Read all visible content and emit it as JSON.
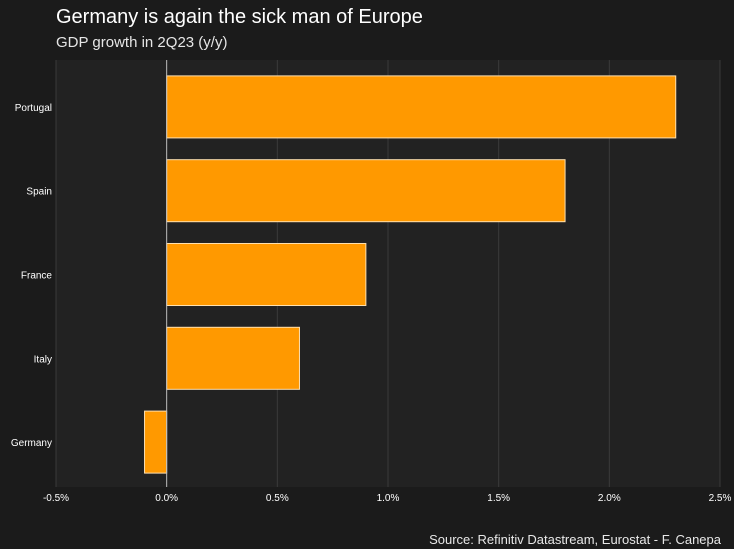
{
  "title": "Germany is again the sick man of Europe",
  "subtitle": "GDP growth in 2Q23 (y/y)",
  "source": "Source: Refinitiv Datastream, Eurostat - F. Canepa",
  "colors": {
    "background": "#1b1b1b",
    "plot_background": "#222222",
    "bar_fill": "#ff9900",
    "bar_stroke": "#ffe0b0",
    "gridline": "#3a3a3a",
    "zero_line": "#bdbdbd",
    "text": "#ffffff"
  },
  "chart_data": {
    "type": "bar",
    "orientation": "horizontal",
    "title": "Germany is again the sick man of Europe",
    "subtitle": "GDP growth in 2Q23 (y/y)",
    "categories": [
      "Portugal",
      "Spain",
      "France",
      "Italy",
      "Germany"
    ],
    "values": [
      2.3,
      1.8,
      0.9,
      0.6,
      -0.1
    ],
    "unit": "%",
    "xlim": [
      -0.5,
      2.5
    ],
    "xticks": [
      -0.5,
      0.0,
      0.5,
      1.0,
      1.5,
      2.0,
      2.5
    ],
    "xtick_labels": [
      "-0.5%",
      "0.0%",
      "0.5%",
      "1.0%",
      "1.5%",
      "2.0%",
      "2.5%"
    ],
    "grid": true,
    "legend": "none"
  }
}
